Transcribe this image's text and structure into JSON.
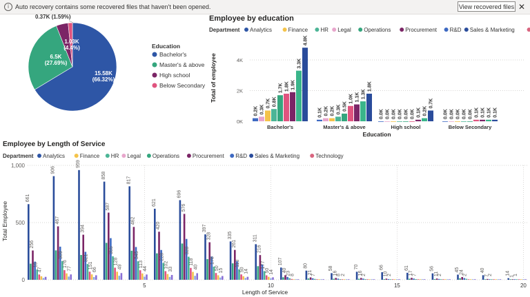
{
  "banner": {
    "info_icon": "info-icon",
    "message": "Auto recovery contains some recovered files that haven't been opened.",
    "button_label": "View recovered files",
    "close_glyph": "✕"
  },
  "colors": {
    "Analytics": "#2e56a6",
    "Finance": "#f4c34a",
    "HR": "#4cb596",
    "Legal": "#e8a6cc",
    "Operations": "#35a67e",
    "Procurement": "#7b2566",
    "R&D": "#3d69c2",
    "Sales & Marketing": "#2a4c9b",
    "Technology": "#d9657f"
  },
  "chart_data": [
    {
      "type": "pie",
      "title": "",
      "legend_title": "Education",
      "legend_position": "right",
      "slices": [
        {
          "label": "Bachelor's",
          "value": 15.58,
          "display": "15.58K",
          "pct": "(66.32%)",
          "color": "#2e56a6"
        },
        {
          "label": "Master's & above",
          "value": 6.5,
          "display": "6.5K",
          "pct": "(27.69%)",
          "color": "#35a67e"
        },
        {
          "label": "High school",
          "value": 1.03,
          "display": "1.03K",
          "pct": "(4.4%)",
          "color": "#7b2566"
        },
        {
          "label": "Below Secondary",
          "value": 0.37,
          "display": "0.37K",
          "pct": "(1.59%)",
          "color": "#e0547f"
        }
      ]
    },
    {
      "type": "bar",
      "title": "Employee by education",
      "legend_title": "Department",
      "series_names": [
        "Analytics",
        "Finance",
        "HR",
        "Legal",
        "Operations",
        "Procurement",
        "R&D",
        "Sales & Marketing",
        "Technology"
      ],
      "categories": [
        "Bachelor's",
        "Master's & above",
        "High school",
        "Below Secondary"
      ],
      "values": [
        [
          0.2,
          0.3,
          0.7,
          0.8,
          1.7,
          1.8,
          1.9,
          3.3,
          4.8
        ],
        [
          0.1,
          0.2,
          0.2,
          0.3,
          0.5,
          1.0,
          1.1,
          1.3,
          1.8
        ],
        [
          0.0,
          0.0,
          0.0,
          0.0,
          0.0,
          0.0,
          0.1,
          0.2,
          0.7
        ],
        [
          0.0,
          0.0,
          0.0,
          0.0,
          0.0,
          0.1,
          0.1,
          0.1,
          0.1
        ]
      ],
      "labels": [
        [
          "0.2K",
          "0.3K",
          "0.7K",
          "0.8K",
          "1.7K",
          "1.8K",
          "1.9K",
          "3.3K",
          "4.8K"
        ],
        [
          "0.1K",
          "0.2K",
          "0.2K",
          "0.3K",
          "0.5K",
          "1.0K",
          "1.1K",
          "1.3K",
          "1.8K"
        ],
        [
          "0.0K",
          "0.0K",
          "0.0K",
          "0.0K",
          "0.0K",
          "0.0K",
          "0.1K",
          "0.2K",
          "0.7K"
        ],
        [
          "0.0K",
          "0.0K",
          "0.0K",
          "0.0K",
          "0.0K",
          "0.1K",
          "0.1K",
          "0.1K",
          "0.1K"
        ]
      ],
      "bar_colors": [
        "#3d69c2",
        "#e8a6cc",
        "#f4c34a",
        "#4cb596",
        "#35a67e",
        "#e0547f",
        "#7b2566",
        "#3ab58a",
        "#2a4c9b"
      ],
      "xlabel": "Education",
      "ylabel": "Total of employee",
      "y_ticks": [
        0,
        2,
        4
      ],
      "y_tick_labels": [
        "0K",
        "2K",
        "4K"
      ],
      "ylim": [
        0,
        5.3
      ]
    },
    {
      "type": "bar",
      "title": "Employee by Length of Service",
      "legend_title": "Department",
      "series_names": [
        "Analytics",
        "Finance",
        "HR",
        "Legal",
        "Operations",
        "Procurement",
        "R&D",
        "Sales & Marketing",
        "Technology"
      ],
      "x": [
        1,
        2,
        3,
        4,
        5,
        6,
        7,
        8,
        9,
        10,
        11,
        12,
        13,
        14,
        15,
        16,
        17,
        18,
        19,
        20
      ],
      "leading_values": [
        661,
        906,
        959,
        858,
        817,
        621,
        696,
        397,
        335,
        311,
        107,
        80,
        58,
        70,
        66,
        61,
        56,
        45,
        40,
        14
      ],
      "leading_labels": [
        "661",
        "906",
        "959",
        "858",
        "817",
        "621",
        "696",
        "397",
        "335",
        "311",
        "107",
        "80",
        "58",
        "70",
        "66",
        "61",
        "56",
        "45",
        "40",
        "14"
      ],
      "second_values": [
        256,
        467,
        394,
        587,
        462,
        420,
        576,
        328,
        261,
        216,
        40,
        21,
        16,
        16,
        10,
        17,
        11,
        24,
        7,
        1
      ],
      "second_labels": [
        "256",
        "467",
        "394",
        "587",
        "462",
        "420",
        "576",
        "328",
        "261",
        "216",
        "40",
        "21",
        "16",
        "16",
        "10",
        "17",
        "11",
        "24",
        "7",
        "1"
      ],
      "other_labels": [
        [
          "15",
          "47"
        ],
        [
          "309",
          "176",
          "77"
        ],
        [
          "321",
          "151",
          "66"
        ],
        [
          "355",
          "128",
          "49"
        ],
        [
          "345",
          "113",
          "44"
        ],
        [
          "228",
          "102",
          "33"
        ],
        [
          "328",
          "118",
          "40"
        ],
        [
          "178",
          "50",
          "15"
        ],
        [
          "113",
          "50",
          "14"
        ],
        [
          "177",
          "50",
          "14"
        ],
        [
          "23",
          "8"
        ],
        [
          "7"
        ],
        [
          "8",
          "2"
        ],
        [
          "2"
        ],
        [
          "2"
        ],
        [
          "7"
        ],
        [
          "2"
        ],
        [
          "2"
        ],
        [
          "2"
        ],
        [
          "1"
        ]
      ],
      "xlabel": "Length of Service",
      "ylabel": "Total Employee",
      "x_tick_labels": [
        "5",
        "10",
        "15",
        "20"
      ],
      "y_ticks": [
        0,
        500,
        1000
      ],
      "y_tick_labels": [
        "0",
        "500",
        "1,000"
      ],
      "ylim": [
        0,
        1000
      ]
    }
  ]
}
